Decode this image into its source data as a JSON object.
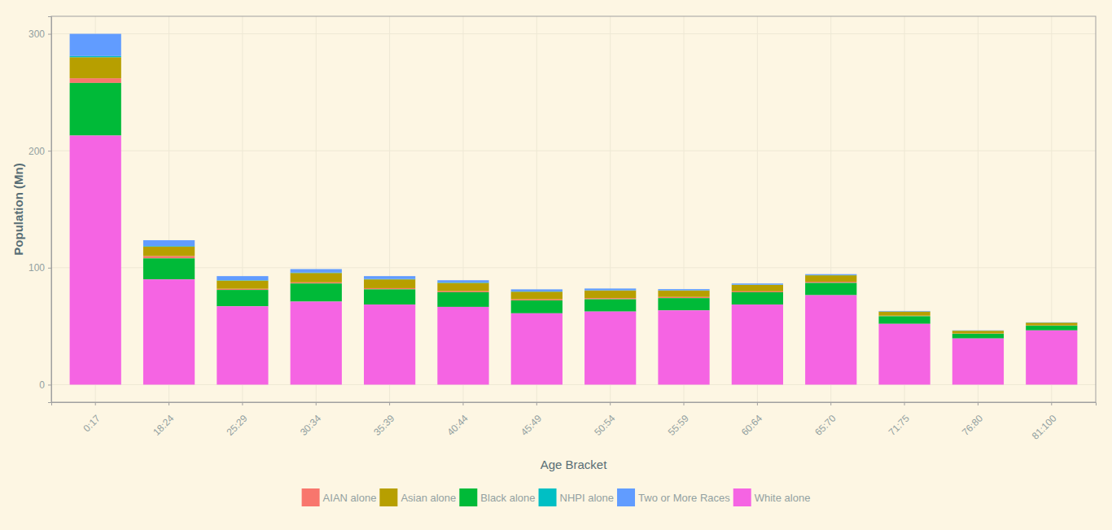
{
  "chart_data": {
    "type": "bar",
    "stacked": true,
    "grid": true,
    "legend": "bottom",
    "x_label": "Age Bracket",
    "y_label": "Population (Mn)",
    "categories": [
      "0:17",
      "18:24",
      "25:29",
      "30:34",
      "35:39",
      "40:44",
      "45:49",
      "50:54",
      "55:59",
      "60:64",
      "65:70",
      "71:75",
      "76:80",
      "81:100"
    ],
    "ylim": [
      -15,
      315
    ],
    "yticks": [
      0,
      100,
      200,
      300
    ],
    "series": [
      {
        "name": "AIAN alone",
        "color": "#F8766D",
        "values": [
          4,
          2,
          1,
          1,
          1,
          1,
          1,
          1,
          1,
          0.8,
          1,
          0.5,
          0.3,
          0.3
        ]
      },
      {
        "name": "Asian alone",
        "color": "#B79F00",
        "values": [
          18,
          8,
          7,
          8,
          7.5,
          7,
          6.5,
          6.5,
          5.5,
          5.5,
          5.5,
          3.5,
          2.3,
          2.3
        ]
      },
      {
        "name": "Black alone",
        "color": "#00BA38",
        "values": [
          45,
          18,
          14,
          15.5,
          13,
          12.5,
          11,
          10.5,
          10.5,
          10.5,
          10.5,
          6.5,
          4,
          4
        ]
      },
      {
        "name": "NHPI alone",
        "color": "#00BFC4",
        "values": [
          1,
          0.5,
          0.3,
          0.3,
          0.3,
          0.3,
          0.2,
          0.2,
          0.2,
          0.2,
          0.2,
          0.1,
          0.1,
          0.1
        ]
      },
      {
        "name": "Two or More Races",
        "color": "#619CFF",
        "values": [
          19,
          5,
          3.5,
          3,
          2.5,
          2,
          1.8,
          1.5,
          1,
          1,
          0.8,
          0.4,
          0.2,
          0.2
        ]
      },
      {
        "name": "White alone",
        "color": "#F564E3",
        "values": [
          213,
          90,
          67,
          71,
          68.5,
          66.5,
          61,
          62.5,
          63.5,
          68.5,
          76.5,
          52,
          39.5,
          46.4
        ]
      }
    ]
  }
}
